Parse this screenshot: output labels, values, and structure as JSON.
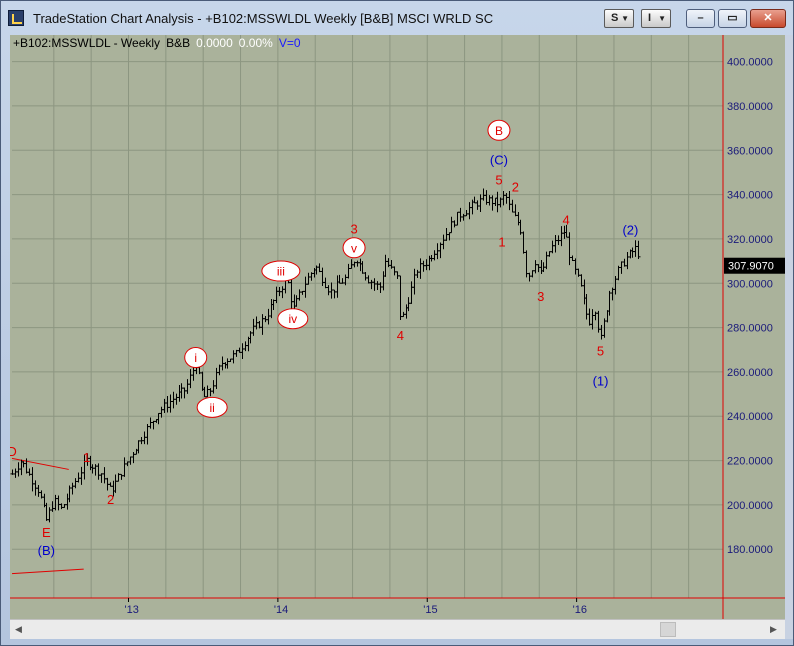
{
  "window": {
    "title": "TradeStation Chart Analysis - +B102:MSSWLDL Weekly [B&B] MSCI WRLD SC",
    "buttons": {
      "style_label": "S",
      "indicator_label": "I"
    },
    "controls": [
      "minimize",
      "restore",
      "close"
    ]
  },
  "header": {
    "symbol": "+B102:MSSWLDL - Weekly",
    "code": "B&B",
    "price": "0.0000",
    "pct": "0.00%",
    "volume": "V=0"
  },
  "colors": {
    "background": "#aab29b",
    "bars": "#000000",
    "wave_red": "#e00000",
    "wave_blue": "#0000cc",
    "axis_red": "#e00000"
  },
  "chart_data": {
    "type": "ohlc",
    "title": "",
    "xlabel": "",
    "ylabel": "",
    "ylim": [
      158,
      412
    ],
    "x_tick_labels": [
      "'13",
      "'14",
      "'15",
      "'16"
    ],
    "y_tick_labels": [
      "180.0000",
      "200.0000",
      "220.0000",
      "240.0000",
      "260.0000",
      "280.0000",
      "300.0000",
      "320.0000",
      "340.0000",
      "360.0000",
      "380.0000",
      "400.0000"
    ],
    "y_ticks": [
      180,
      200,
      220,
      240,
      260,
      280,
      300,
      320,
      340,
      360,
      380,
      400
    ],
    "x_ticks": [
      2013,
      2014,
      2015,
      2016
    ],
    "last_price_label": "307.9070",
    "last_price": 307.907,
    "grid": true,
    "x_start": 2012.22,
    "x_end": 2016.98,
    "pivots": [
      [
        2012.22,
        214
      ],
      [
        2012.28,
        220
      ],
      [
        2012.4,
        206
      ],
      [
        2012.45,
        193
      ],
      [
        2012.5,
        202
      ],
      [
        2012.55,
        198
      ],
      [
        2012.62,
        208
      ],
      [
        2012.72,
        220
      ],
      [
        2012.82,
        214
      ],
      [
        2012.88,
        206
      ],
      [
        2012.96,
        216
      ],
      [
        2013.08,
        230
      ],
      [
        2013.2,
        242
      ],
      [
        2013.3,
        248
      ],
      [
        2013.38,
        252
      ],
      [
        2013.45,
        264
      ],
      [
        2013.5,
        248
      ],
      [
        2013.55,
        252
      ],
      [
        2013.62,
        264
      ],
      [
        2013.72,
        268
      ],
      [
        2013.82,
        278
      ],
      [
        2013.92,
        285
      ],
      [
        2014.0,
        296
      ],
      [
        2014.06,
        302
      ],
      [
        2014.1,
        288
      ],
      [
        2014.18,
        300
      ],
      [
        2014.25,
        308
      ],
      [
        2014.35,
        296
      ],
      [
        2014.45,
        302
      ],
      [
        2014.52,
        312
      ],
      [
        2014.6,
        302
      ],
      [
        2014.68,
        298
      ],
      [
        2014.72,
        310
      ],
      [
        2014.8,
        302
      ],
      [
        2014.82,
        282
      ],
      [
        2014.87,
        292
      ],
      [
        2014.93,
        306
      ],
      [
        2015.0,
        310
      ],
      [
        2015.1,
        320
      ],
      [
        2015.2,
        330
      ],
      [
        2015.3,
        335
      ],
      [
        2015.38,
        338
      ],
      [
        2015.48,
        336
      ],
      [
        2015.52,
        340
      ],
      [
        2015.56,
        332
      ],
      [
        2015.62,
        326
      ],
      [
        2015.67,
        302
      ],
      [
        2015.72,
        310
      ],
      [
        2015.76,
        304
      ],
      [
        2015.82,
        315
      ],
      [
        2015.92,
        324
      ],
      [
        2015.96,
        310
      ],
      [
        2016.02,
        300
      ],
      [
        2016.08,
        282
      ],
      [
        2016.12,
        290
      ],
      [
        2016.16,
        274
      ],
      [
        2016.22,
        296
      ],
      [
        2016.28,
        306
      ],
      [
        2016.34,
        312
      ],
      [
        2016.4,
        316
      ],
      [
        2016.43,
        310
      ]
    ],
    "labels": [
      {
        "text": "D",
        "x": 2012.22,
        "y": 224,
        "color": "red",
        "circled": false
      },
      {
        "text": "E",
        "x": 2012.45,
        "y": 187.5,
        "color": "red",
        "circled": false
      },
      {
        "text": "(B)",
        "x": 2012.45,
        "y": 179.5,
        "color": "blue",
        "circled": false
      },
      {
        "text": "1",
        "x": 2012.72,
        "y": 221.5,
        "color": "red",
        "circled": false
      },
      {
        "text": "2",
        "x": 2012.88,
        "y": 202.5,
        "color": "red",
        "circled": false
      },
      {
        "text": "i",
        "x": 2013.45,
        "y": 266.5,
        "color": "red",
        "circled": true
      },
      {
        "text": "ii",
        "x": 2013.56,
        "y": 244,
        "color": "red",
        "circled": true
      },
      {
        "text": "iii",
        "x": 2014.02,
        "y": 305.5,
        "color": "red",
        "circled": true
      },
      {
        "text": "iv",
        "x": 2014.1,
        "y": 284,
        "color": "red",
        "circled": true
      },
      {
        "text": "3",
        "x": 2014.51,
        "y": 324.5,
        "color": "red",
        "circled": false
      },
      {
        "text": "v",
        "x": 2014.51,
        "y": 316,
        "color": "red",
        "circled": true
      },
      {
        "text": "4",
        "x": 2014.82,
        "y": 276.5,
        "color": "red",
        "circled": false
      },
      {
        "text": "B",
        "x": 2015.48,
        "y": 369,
        "color": "red",
        "circled": true
      },
      {
        "text": "(C)",
        "x": 2015.48,
        "y": 355.5,
        "color": "blue",
        "circled": false
      },
      {
        "text": "5",
        "x": 2015.48,
        "y": 346.5,
        "color": "red",
        "circled": false
      },
      {
        "text": "2",
        "x": 2015.59,
        "y": 343.5,
        "color": "red",
        "circled": false
      },
      {
        "text": "1",
        "x": 2015.5,
        "y": 318.5,
        "color": "red",
        "circled": false
      },
      {
        "text": "3",
        "x": 2015.76,
        "y": 294,
        "color": "red",
        "circled": false
      },
      {
        "text": "4",
        "x": 2015.93,
        "y": 328.5,
        "color": "red",
        "circled": false
      },
      {
        "text": "5",
        "x": 2016.16,
        "y": 269.5,
        "color": "red",
        "circled": false
      },
      {
        "text": "(1)",
        "x": 2016.16,
        "y": 256,
        "color": "blue",
        "circled": false
      },
      {
        "text": "(2)",
        "x": 2016.36,
        "y": 324,
        "color": "blue",
        "circled": false
      }
    ],
    "trendlines": [
      {
        "from": [
          2012.22,
          221
        ],
        "to": [
          2012.6,
          216
        ]
      },
      {
        "from": [
          2012.22,
          169
        ],
        "to": [
          2012.7,
          171
        ]
      }
    ]
  }
}
